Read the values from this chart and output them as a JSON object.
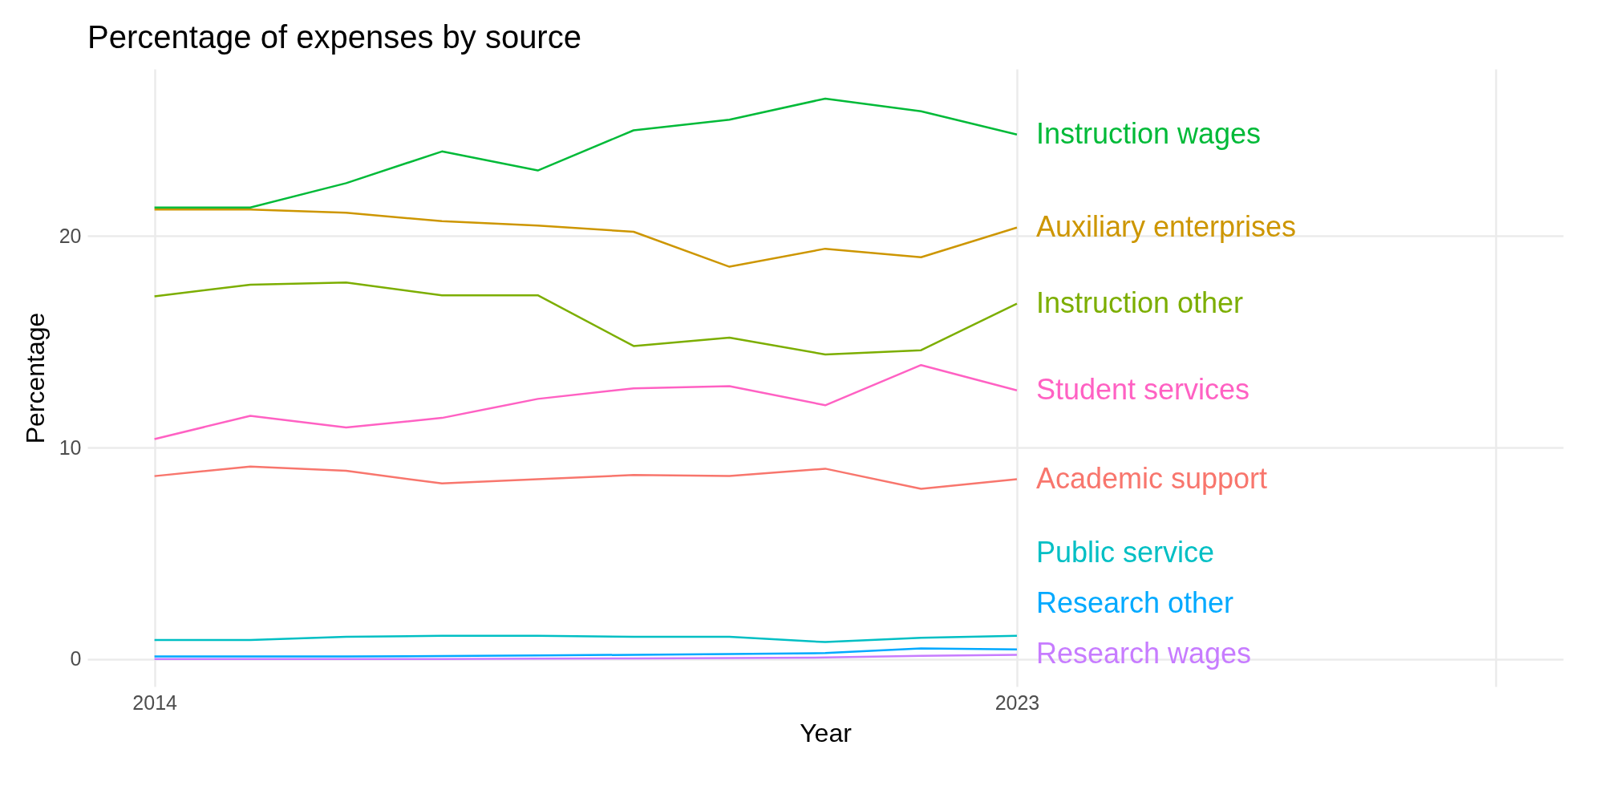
{
  "chart_data": {
    "type": "line",
    "title": "Percentage of expenses by source",
    "xlabel": "Year",
    "ylabel": "Percentage",
    "x": [
      2014,
      2015,
      2016,
      2017,
      2018,
      2019,
      2020,
      2021,
      2022,
      2023
    ],
    "xlim": [
      2013.3,
      2028.7
    ],
    "xticks": [
      2014,
      2023,
      {
        "value": 2028,
        "label": null
      }
    ],
    "ylim": [
      -1.3,
      27.9
    ],
    "yticks": [
      0,
      10,
      20
    ],
    "grid": true,
    "series": [
      {
        "name": "Instruction wages",
        "color": "#00ba38",
        "values": [
          21.35,
          21.35,
          22.5,
          24.0,
          23.1,
          25.0,
          25.5,
          26.5,
          25.9,
          24.8
        ]
      },
      {
        "name": "Auxiliary enterprises",
        "color": "#cd9600",
        "values": [
          21.25,
          21.25,
          21.1,
          20.7,
          20.5,
          20.2,
          18.55,
          19.4,
          19.0,
          20.4
        ]
      },
      {
        "name": "Instruction other",
        "color": "#7cae00",
        "values": [
          17.15,
          17.7,
          17.8,
          17.2,
          17.2,
          14.8,
          15.2,
          14.4,
          14.6,
          16.8
        ]
      },
      {
        "name": "Student services",
        "color": "#ff61c3",
        "values": [
          10.4,
          11.5,
          10.95,
          11.4,
          12.3,
          12.8,
          12.9,
          12.0,
          13.9,
          12.7
        ]
      },
      {
        "name": "Academic support",
        "color": "#f8766d",
        "values": [
          8.65,
          9.1,
          8.9,
          8.3,
          8.5,
          8.7,
          8.65,
          9.0,
          8.05,
          8.5
        ]
      },
      {
        "name": "Public service",
        "color": "#00bfc4",
        "values": [
          0.9,
          0.9,
          1.05,
          1.1,
          1.1,
          1.05,
          1.05,
          0.8,
          1.0,
          1.1
        ]
      },
      {
        "name": "Research other",
        "color": "#00a9ff",
        "values": [
          0.12,
          0.12,
          0.12,
          0.14,
          0.17,
          0.2,
          0.24,
          0.28,
          0.5,
          0.45
        ]
      },
      {
        "name": "Research wages",
        "color": "#c77cff",
        "values": [
          0.0,
          0.0,
          0.0,
          0.0,
          0.02,
          0.03,
          0.05,
          0.07,
          0.15,
          0.2
        ]
      }
    ]
  }
}
